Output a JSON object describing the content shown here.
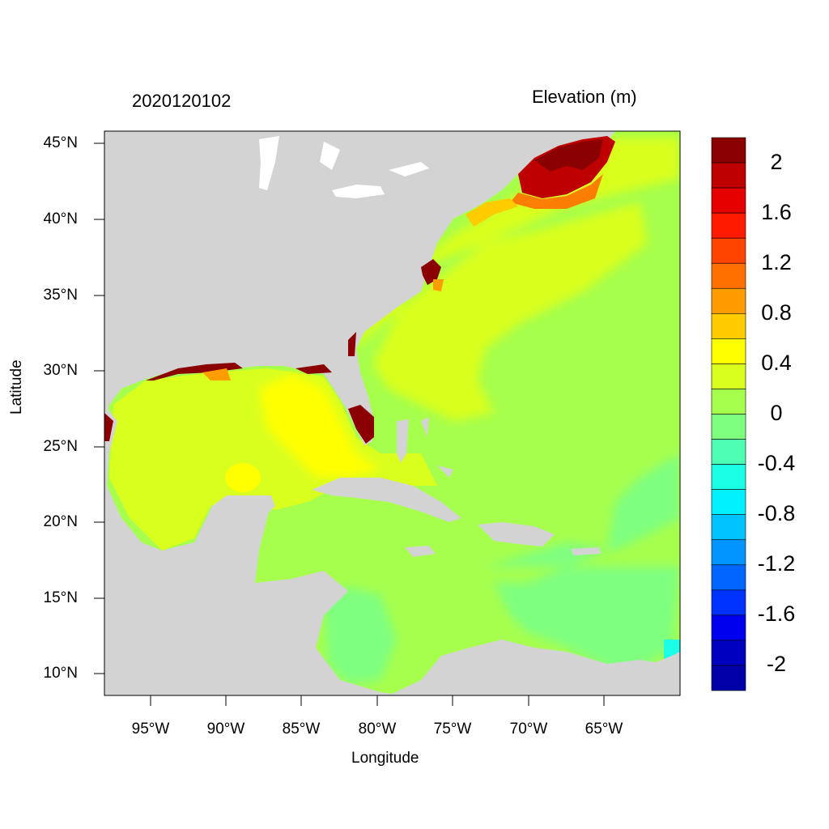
{
  "title_left": "2020120102",
  "title_right": "Elevation (m)",
  "xlabel": "Longitude",
  "ylabel": "Latitude",
  "x_ticks": [
    "95°W",
    "90°W",
    "85°W",
    "80°W",
    "75°W",
    "70°W",
    "65°W"
  ],
  "y_ticks": [
    "45°N",
    "40°N",
    "35°N",
    "30°N",
    "25°N",
    "20°N",
    "15°N",
    "10°N"
  ],
  "colorbar": {
    "labels": [
      "2",
      "1.6",
      "1.2",
      "0.8",
      "0.4",
      "0",
      "-0.4",
      "-0.8",
      "-1.2",
      "-1.6",
      "-2"
    ],
    "colors": [
      "#8b0000",
      "#bf0000",
      "#e60000",
      "#ff1a00",
      "#ff4400",
      "#ff7000",
      "#ff9c00",
      "#ffcc00",
      "#ffff00",
      "#d9ff1f",
      "#a6ff4d",
      "#7fff80",
      "#4dffb3",
      "#1affe6",
      "#00f0ff",
      "#00c3ff",
      "#0095ff",
      "#0066ff",
      "#0033ff",
      "#0000ee",
      "#0000c0",
      "#0000a8"
    ]
  },
  "colors": {
    "land": "#d3d3d3",
    "gulf_high": "#ffff00",
    "surge_max": "#8b0000"
  }
}
